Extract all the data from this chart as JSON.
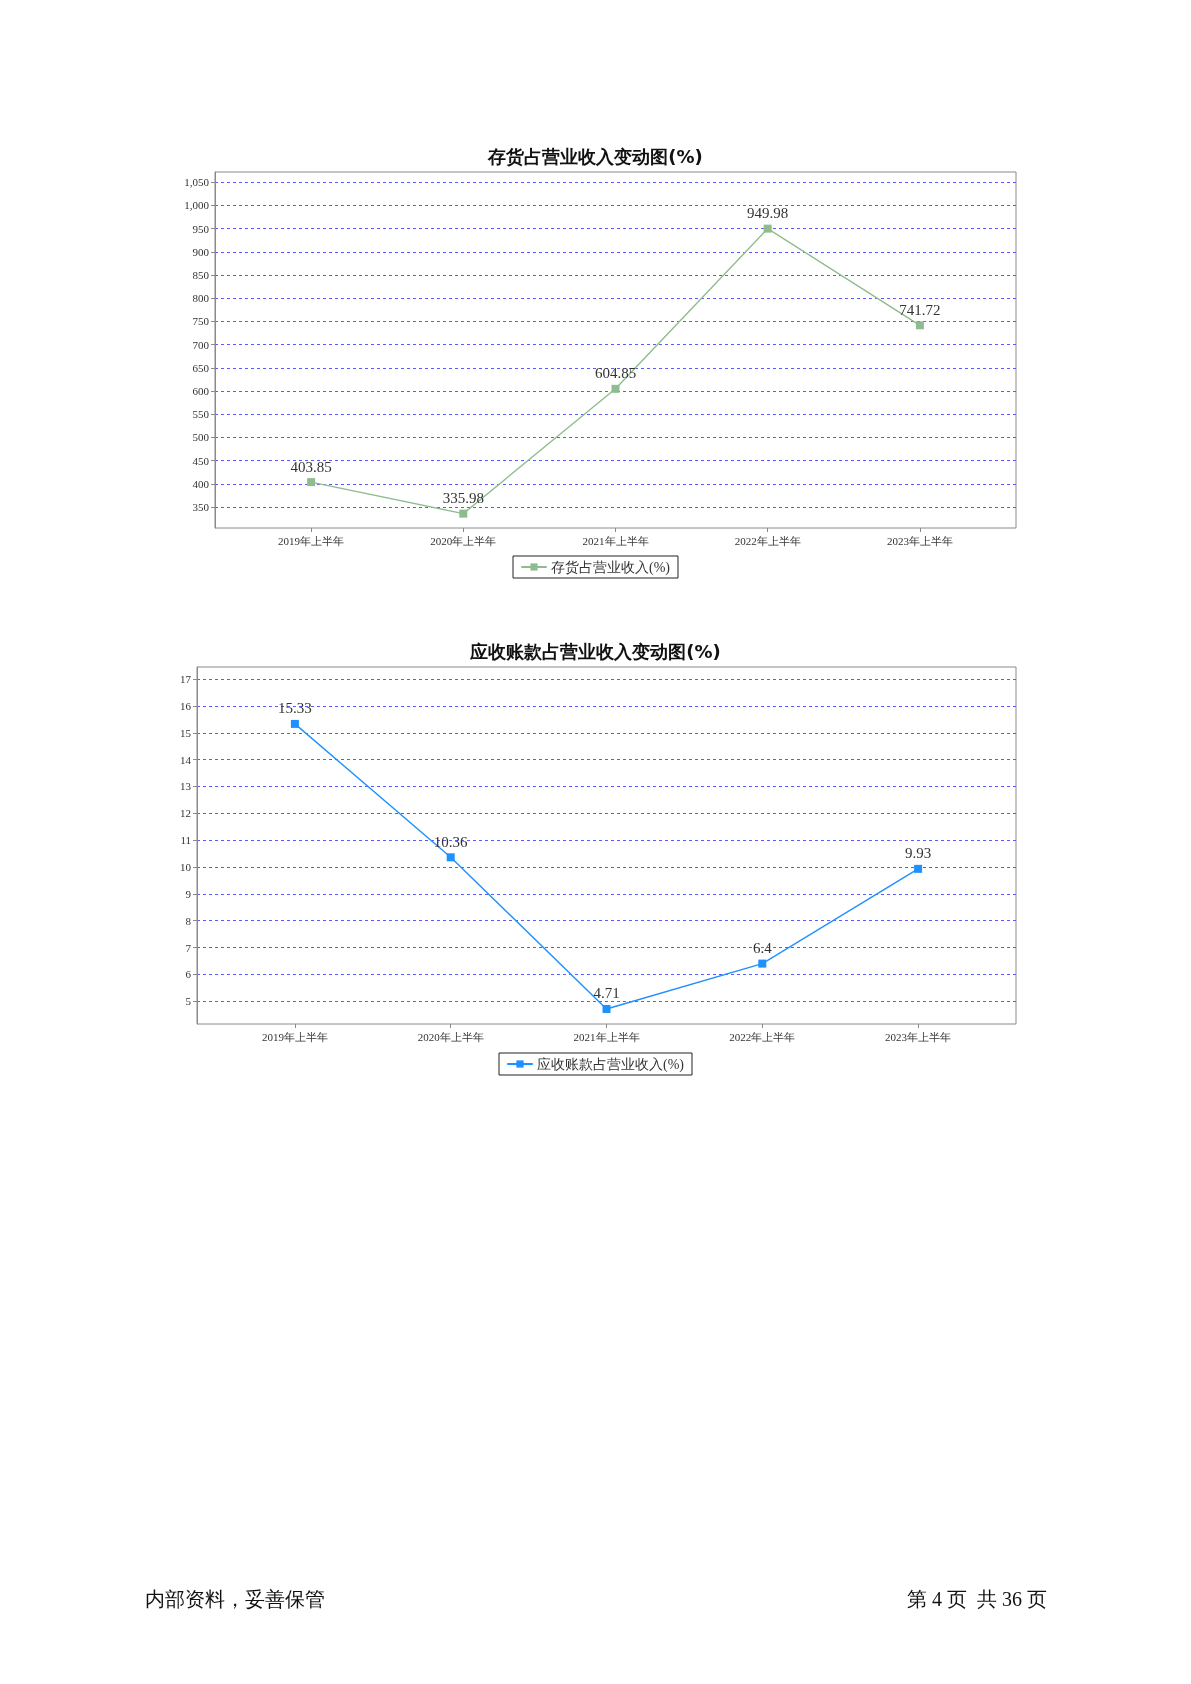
{
  "chart_data": [
    {
      "type": "line",
      "title": "存货占营业收入变动图(%)",
      "categories": [
        "2019年上半年",
        "2020年上半年",
        "2021年上半年",
        "2022年上半年",
        "2023年上半年"
      ],
      "series": [
        {
          "name": "存货占营业收入(%)",
          "color": "#8fbc8f",
          "values": [
            403.85,
            335.98,
            604.85,
            949.98,
            741.72
          ]
        }
      ],
      "ylim": [
        305,
        1072
      ],
      "yticks": [
        350,
        400,
        450,
        500,
        550,
        600,
        650,
        700,
        750,
        800,
        850,
        900,
        950,
        {
          "value": 1000,
          "label": "1,000"
        },
        {
          "value": 1050,
          "label": "1,050"
        }
      ],
      "grid": "y",
      "legend": "bottom",
      "marker": "square",
      "line_style": "solid",
      "data_labels": true
    },
    {
      "type": "line",
      "title": "应收账款占营业收入变动图(%)",
      "categories": [
        "2019年上半年",
        "2020年上半年",
        "2021年上半年",
        "2022年上半年",
        "2023年上半年"
      ],
      "series": [
        {
          "name": "应收账款占营业收入(%)",
          "color": "#1e90ff",
          "values": [
            15.33,
            10.36,
            4.71,
            6.4,
            9.93
          ]
        }
      ],
      "ylim": [
        4.15,
        17.45
      ],
      "yticks": [
        5,
        6,
        7,
        8,
        9,
        10,
        11,
        12,
        13,
        14,
        15,
        16,
        17
      ],
      "grid": "y",
      "legend": "bottom",
      "marker": "square",
      "line_style": "solid",
      "data_labels": true,
      "annotations": [
        "内部资料，妥善保管",
        "第 4 页  共 36 页"
      ]
    }
  ]
}
